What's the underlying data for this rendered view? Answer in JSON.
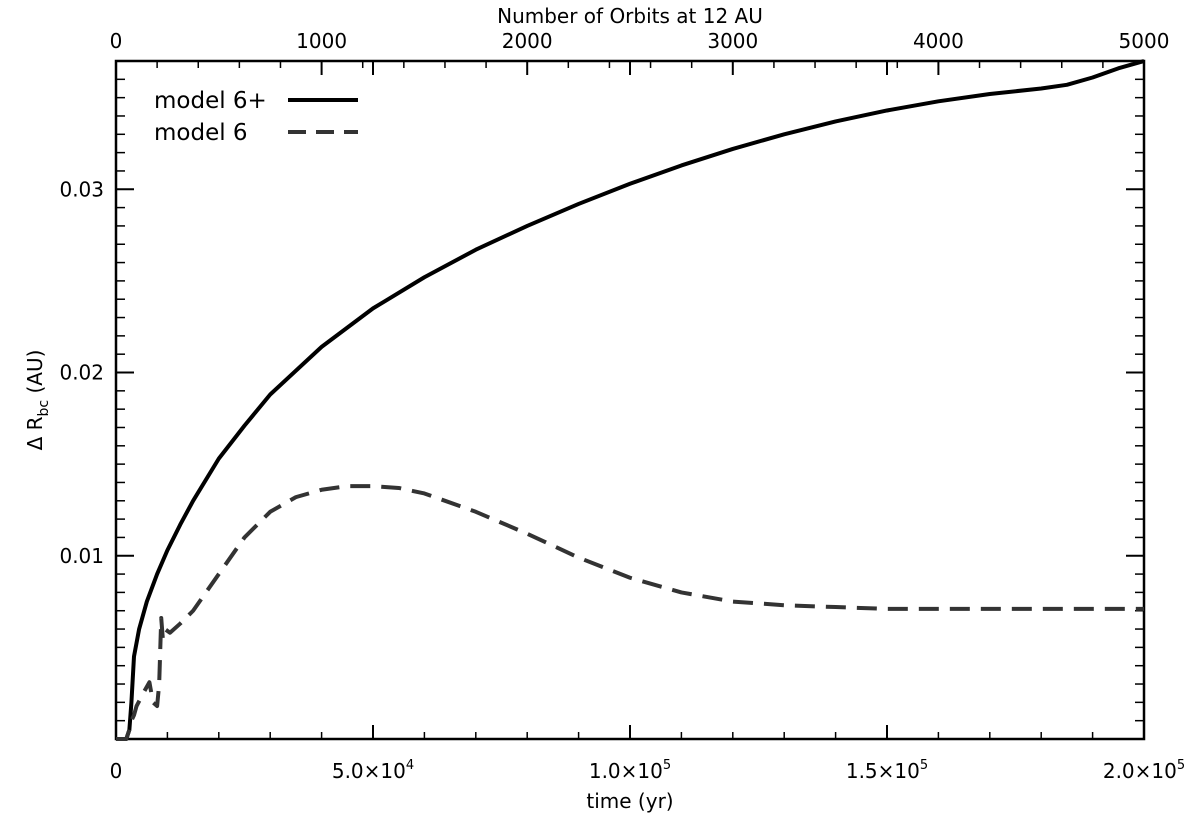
{
  "chart_data": {
    "type": "line",
    "xlabel": "time (yr)",
    "ylabel": "Δ R",
    "ylabel_sub": "bc",
    "ylabel_unit": " (AU)",
    "top_xlabel": "Number of Orbits at 12 AU",
    "xlim": [
      0,
      200000
    ],
    "ylim": [
      0,
      0.037
    ],
    "top_xlim": [
      0,
      5000
    ],
    "x_ticks": [
      {
        "value": 0,
        "label": "0"
      },
      {
        "value": 50000,
        "label": "5.0×10",
        "exp": "4"
      },
      {
        "value": 100000,
        "label": "1.0×10",
        "exp": "5"
      },
      {
        "value": 150000,
        "label": "1.5×10",
        "exp": "5"
      },
      {
        "value": 200000,
        "label": "2.0×10",
        "exp": "5"
      }
    ],
    "y_ticks": [
      {
        "value": 0.01,
        "label": "0.01"
      },
      {
        "value": 0.02,
        "label": "0.02"
      },
      {
        "value": 0.03,
        "label": "0.03"
      }
    ],
    "top_ticks": [
      {
        "value": 0,
        "label": "0"
      },
      {
        "value": 1000,
        "label": "1000"
      },
      {
        "value": 2000,
        "label": "2000"
      },
      {
        "value": 3000,
        "label": "3000"
      },
      {
        "value": 4000,
        "label": "4000"
      },
      {
        "value": 5000,
        "label": "5000"
      }
    ],
    "legend_position": "top-left",
    "series": [
      {
        "name": "model 6+",
        "style": "solid",
        "color": "#000000",
        "x": [
          0,
          2000,
          2600,
          3000,
          3500,
          4500,
          6000,
          8000,
          10000,
          12500,
          15000,
          20000,
          25000,
          30000,
          40000,
          50000,
          60000,
          70000,
          80000,
          90000,
          100000,
          110000,
          120000,
          130000,
          140000,
          150000,
          160000,
          170000,
          180000,
          185000,
          190000,
          195000,
          200000
        ],
        "y": [
          0,
          0,
          0.0005,
          0.002,
          0.0045,
          0.006,
          0.0075,
          0.009,
          0.0103,
          0.0117,
          0.013,
          0.0153,
          0.0171,
          0.0188,
          0.0214,
          0.0235,
          0.0252,
          0.0267,
          0.028,
          0.0292,
          0.0303,
          0.0313,
          0.0322,
          0.033,
          0.0337,
          0.0343,
          0.0348,
          0.0352,
          0.0355,
          0.0357,
          0.0361,
          0.0366,
          0.037
        ]
      },
      {
        "name": "model 6",
        "style": "dashed",
        "color": "#333333",
        "x": [
          0,
          2000,
          2600,
          3000,
          3500,
          4000,
          5500,
          6500,
          7200,
          8000,
          8400,
          8800,
          9100,
          9500,
          10500,
          12500,
          15000,
          20000,
          25000,
          30000,
          35000,
          40000,
          45000,
          50000,
          55000,
          60000,
          70000,
          80000,
          90000,
          100000,
          110000,
          120000,
          130000,
          140000,
          150000,
          160000,
          170000,
          180000,
          190000,
          200000
        ],
        "y": [
          0,
          0,
          0.0005,
          0.001,
          0.0013,
          0.0018,
          0.0026,
          0.0031,
          0.002,
          0.0018,
          0.003,
          0.0066,
          0.0055,
          0.006,
          0.0058,
          0.0063,
          0.007,
          0.009,
          0.011,
          0.0124,
          0.0132,
          0.0136,
          0.0138,
          0.0138,
          0.0137,
          0.0134,
          0.0124,
          0.0112,
          0.0099,
          0.0088,
          0.008,
          0.0075,
          0.0073,
          0.0072,
          0.0071,
          0.0071,
          0.0071,
          0.0071,
          0.0071,
          0.0071
        ]
      }
    ]
  }
}
